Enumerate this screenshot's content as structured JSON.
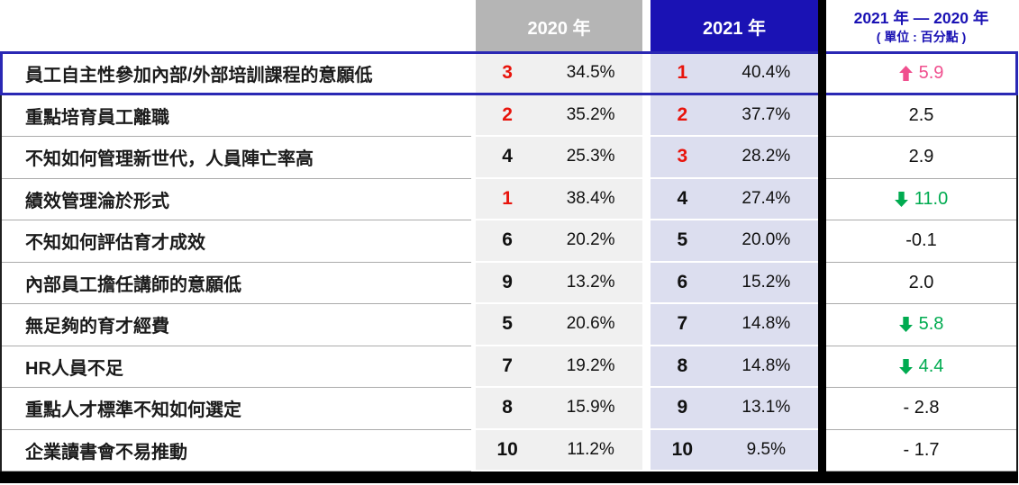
{
  "table": {
    "header": {
      "col_2020": "2020 年",
      "col_2021": "2021 年",
      "diff_line1": "2021 年 — 2020 年",
      "diff_line2": "( 單位 : 百分點 )"
    },
    "rows": [
      {
        "label": "員工自主性參加內部/外部培訓課程的意願低",
        "rank_2020": "3",
        "rank_2020_red": true,
        "pct_2020": "34.5%",
        "rank_2021": "1",
        "rank_2021_red": true,
        "pct_2021": "40.4%",
        "diff": "5.9",
        "diff_arrow": "up",
        "diff_color": "pink",
        "highlighted": true
      },
      {
        "label": "重點培育員工離職",
        "rank_2020": "2",
        "rank_2020_red": true,
        "pct_2020": "35.2%",
        "rank_2021": "2",
        "rank_2021_red": true,
        "pct_2021": "37.7%",
        "diff": "2.5",
        "diff_arrow": null,
        "diff_color": "black",
        "highlighted": false
      },
      {
        "label": "不知如何管理新世代，人員陣亡率高",
        "rank_2020": "4",
        "rank_2020_red": false,
        "pct_2020": "25.3%",
        "rank_2021": "3",
        "rank_2021_red": true,
        "pct_2021": "28.2%",
        "diff": "2.9",
        "diff_arrow": null,
        "diff_color": "black",
        "highlighted": false
      },
      {
        "label": "績效管理淪於形式",
        "rank_2020": "1",
        "rank_2020_red": true,
        "pct_2020": "38.4%",
        "rank_2021": "4",
        "rank_2021_red": false,
        "pct_2021": "27.4%",
        "diff": "11.0",
        "diff_arrow": "down",
        "diff_color": "green",
        "highlighted": false
      },
      {
        "label": "不知如何評估育才成效",
        "rank_2020": "6",
        "rank_2020_red": false,
        "pct_2020": "20.2%",
        "rank_2021": "5",
        "rank_2021_red": false,
        "pct_2021": "20.0%",
        "diff": "-0.1",
        "diff_arrow": null,
        "diff_color": "black",
        "highlighted": false
      },
      {
        "label": "內部員工擔任講師的意願低",
        "rank_2020": "9",
        "rank_2020_red": false,
        "pct_2020": "13.2%",
        "rank_2021": "6",
        "rank_2021_red": false,
        "pct_2021": "15.2%",
        "diff": "2.0",
        "diff_arrow": null,
        "diff_color": "black",
        "highlighted": false
      },
      {
        "label": "無足夠的育才經費",
        "rank_2020": "5",
        "rank_2020_red": false,
        "pct_2020": "20.6%",
        "rank_2021": "7",
        "rank_2021_red": false,
        "pct_2021": "14.8%",
        "diff": "5.8",
        "diff_arrow": "down",
        "diff_color": "green",
        "highlighted": false
      },
      {
        "label": "HR人員不足",
        "rank_2020": "7",
        "rank_2020_red": false,
        "pct_2020": "19.2%",
        "rank_2021": "8",
        "rank_2021_red": false,
        "pct_2021": "14.8%",
        "diff": "4.4",
        "diff_arrow": "down",
        "diff_color": "green",
        "highlighted": false
      },
      {
        "label": "重點人才標準不知如何選定",
        "rank_2020": "8",
        "rank_2020_red": false,
        "pct_2020": "15.9%",
        "rank_2021": "9",
        "rank_2021_red": false,
        "pct_2021": "13.1%",
        "diff": "- 2.8",
        "diff_arrow": null,
        "diff_color": "black",
        "highlighted": false
      },
      {
        "label": "企業讀書會不易推動",
        "rank_2020": "10",
        "rank_2020_red": false,
        "pct_2020": "11.2%",
        "rank_2021": "10",
        "rank_2021_red": false,
        "pct_2021": "9.5%",
        "diff": "- 1.7",
        "diff_arrow": null,
        "diff_color": "black",
        "highlighted": false
      }
    ]
  },
  "chart_data": {
    "type": "table",
    "title": "",
    "column_groups": [
      "2020 年",
      "2021 年",
      "2021 年 — 2020 年 ( 單位 : 百分點 )"
    ],
    "rows": [
      {
        "label": "員工自主性參加內部/外部培訓課程的意願低",
        "rank_2020": 3,
        "pct_2020": 34.5,
        "rank_2021": 1,
        "pct_2021": 40.4,
        "diff_points": 5.9
      },
      {
        "label": "重點培育員工離職",
        "rank_2020": 2,
        "pct_2020": 35.2,
        "rank_2021": 2,
        "pct_2021": 37.7,
        "diff_points": 2.5
      },
      {
        "label": "不知如何管理新世代，人員陣亡率高",
        "rank_2020": 4,
        "pct_2020": 25.3,
        "rank_2021": 3,
        "pct_2021": 28.2,
        "diff_points": 2.9
      },
      {
        "label": "績效管理淪於形式",
        "rank_2020": 1,
        "pct_2020": 38.4,
        "rank_2021": 4,
        "pct_2021": 27.4,
        "diff_points": -11.0
      },
      {
        "label": "不知如何評估育才成效",
        "rank_2020": 6,
        "pct_2020": 20.2,
        "rank_2021": 5,
        "pct_2021": 20.0,
        "diff_points": -0.1
      },
      {
        "label": "內部員工擔任講師的意願低",
        "rank_2020": 9,
        "pct_2020": 13.2,
        "rank_2021": 6,
        "pct_2021": 15.2,
        "diff_points": 2.0
      },
      {
        "label": "無足夠的育才經費",
        "rank_2020": 5,
        "pct_2020": 20.6,
        "rank_2021": 7,
        "pct_2021": 14.8,
        "diff_points": -5.8
      },
      {
        "label": "HR人員不足",
        "rank_2020": 7,
        "pct_2020": 19.2,
        "rank_2021": 8,
        "pct_2021": 14.8,
        "diff_points": -4.4
      },
      {
        "label": "重點人才標準不知如何選定",
        "rank_2020": 8,
        "pct_2020": 15.9,
        "rank_2021": 9,
        "pct_2021": 13.1,
        "diff_points": -2.8
      },
      {
        "label": "企業讀書會不易推動",
        "rank_2020": 10,
        "pct_2020": 11.2,
        "rank_2021": 10,
        "pct_2021": 9.5,
        "diff_points": -1.7
      }
    ]
  },
  "colors": {
    "header_gray": "#b5b5b5",
    "header_blue": "#1a12b4",
    "col_2020_bg": "#f0f0f0",
    "col_2021_bg": "#dcdeef",
    "rank_red": "#e8140c",
    "diff_pink": "#f04f8e",
    "diff_green": "#00ab50",
    "highlight_border": "#2a28b4",
    "separator": "#ababab",
    "black": "#000000"
  }
}
